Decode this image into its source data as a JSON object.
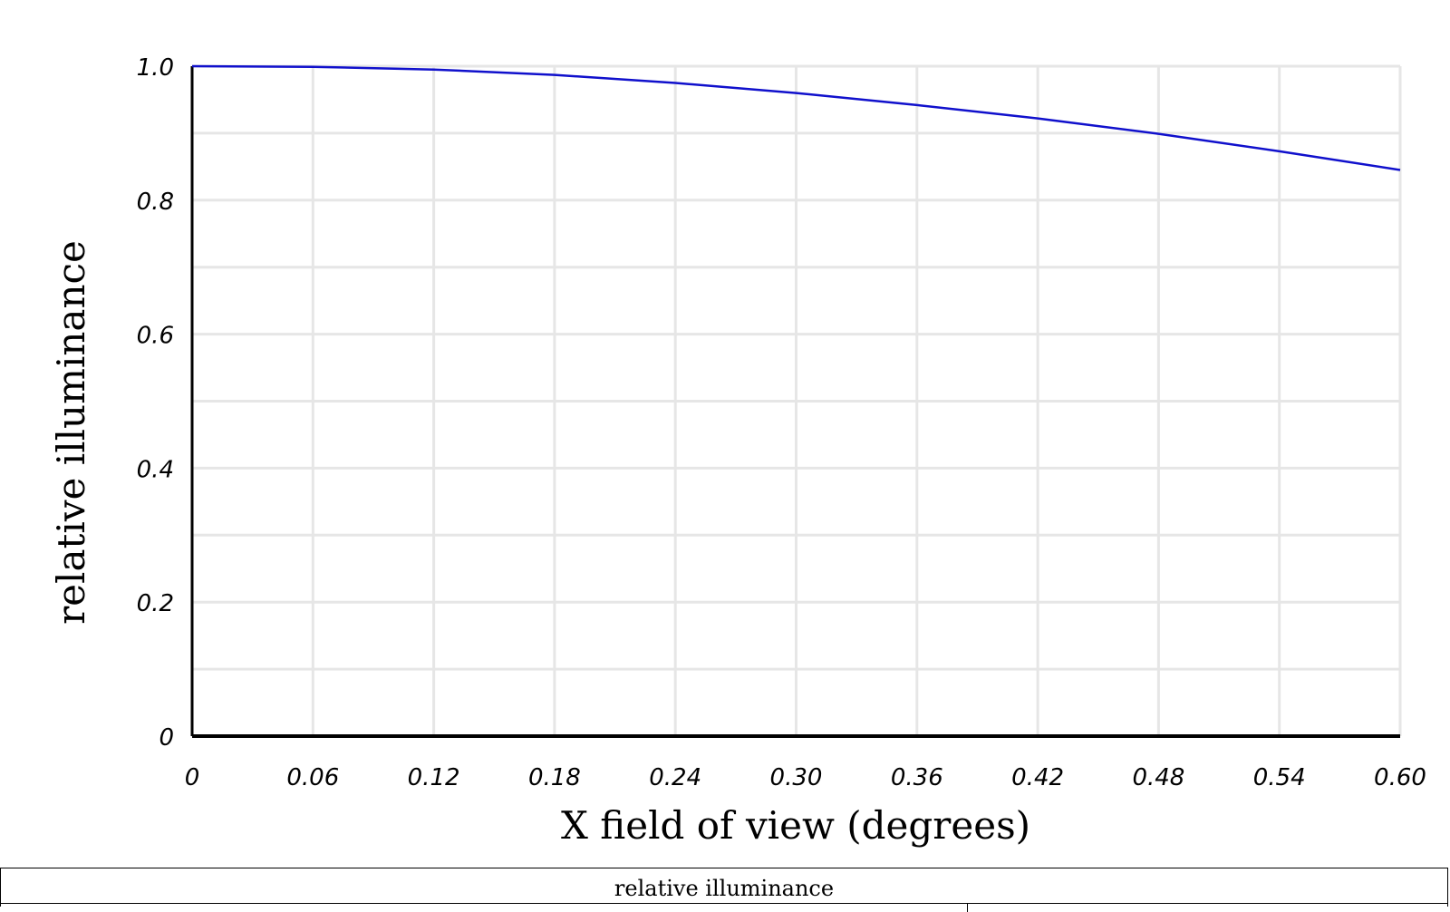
{
  "chart_data": {
    "type": "line",
    "xlabel": "X field of view (degrees)",
    "ylabel": "relative illuminance",
    "xlim": [
      0,
      0.6
    ],
    "ylim": [
      0,
      1.0
    ],
    "x_ticks": [
      "0",
      "0.06",
      "0.12",
      "0.18",
      "0.24",
      "0.30",
      "0.36",
      "0.42",
      "0.48",
      "0.54",
      "0.60"
    ],
    "y_ticks": [
      "0",
      "0.2",
      "0.4",
      "0.6",
      "0.8",
      "1.0"
    ],
    "grid": true,
    "series": [
      {
        "color": "#1010cc",
        "x": [
          0,
          0.06,
          0.12,
          0.18,
          0.24,
          0.3,
          0.36,
          0.42,
          0.48,
          0.54,
          0.6
        ],
        "y": [
          1.0,
          0.999,
          0.995,
          0.987,
          0.975,
          0.96,
          0.942,
          0.922,
          0.899,
          0.873,
          0.845
        ]
      }
    ]
  },
  "legend": {
    "title": "relative illuminance"
  }
}
